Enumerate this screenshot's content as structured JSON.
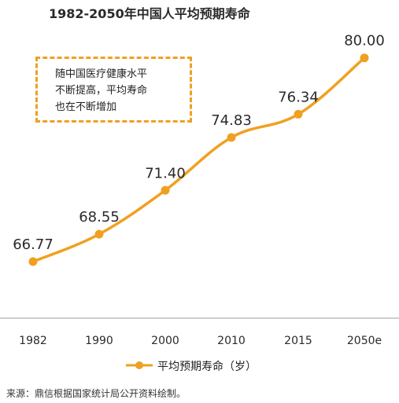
{
  "title": "1982-2050年中国人平均预期寿命",
  "callout": {
    "lines": [
      "随中国医疗健康水平",
      "不断提高，平均寿命",
      "也在不断增加"
    ]
  },
  "legend": {
    "label": "平均预期寿命（岁）"
  },
  "source": "来源：鼎信根据国家统计局公开资料绘制。",
  "colors": {
    "series": "#f0a020",
    "axis": "#bdbdbd"
  },
  "chart_data": {
    "type": "line",
    "title": "1982-2050年中国人平均预期寿命",
    "categories": [
      "1982",
      "1990",
      "2000",
      "2010",
      "2015",
      "2050e"
    ],
    "series": [
      {
        "name": "平均预期寿命（岁）",
        "values": [
          66.77,
          68.55,
          71.4,
          74.83,
          76.34,
          80.0
        ]
      }
    ],
    "data_labels": [
      "66.77",
      "68.55",
      "71.40",
      "74.83",
      "76.34",
      "80.00"
    ],
    "xlabel": "",
    "ylabel": "",
    "grid": false,
    "legend_position": "bottom",
    "smooth": true
  }
}
